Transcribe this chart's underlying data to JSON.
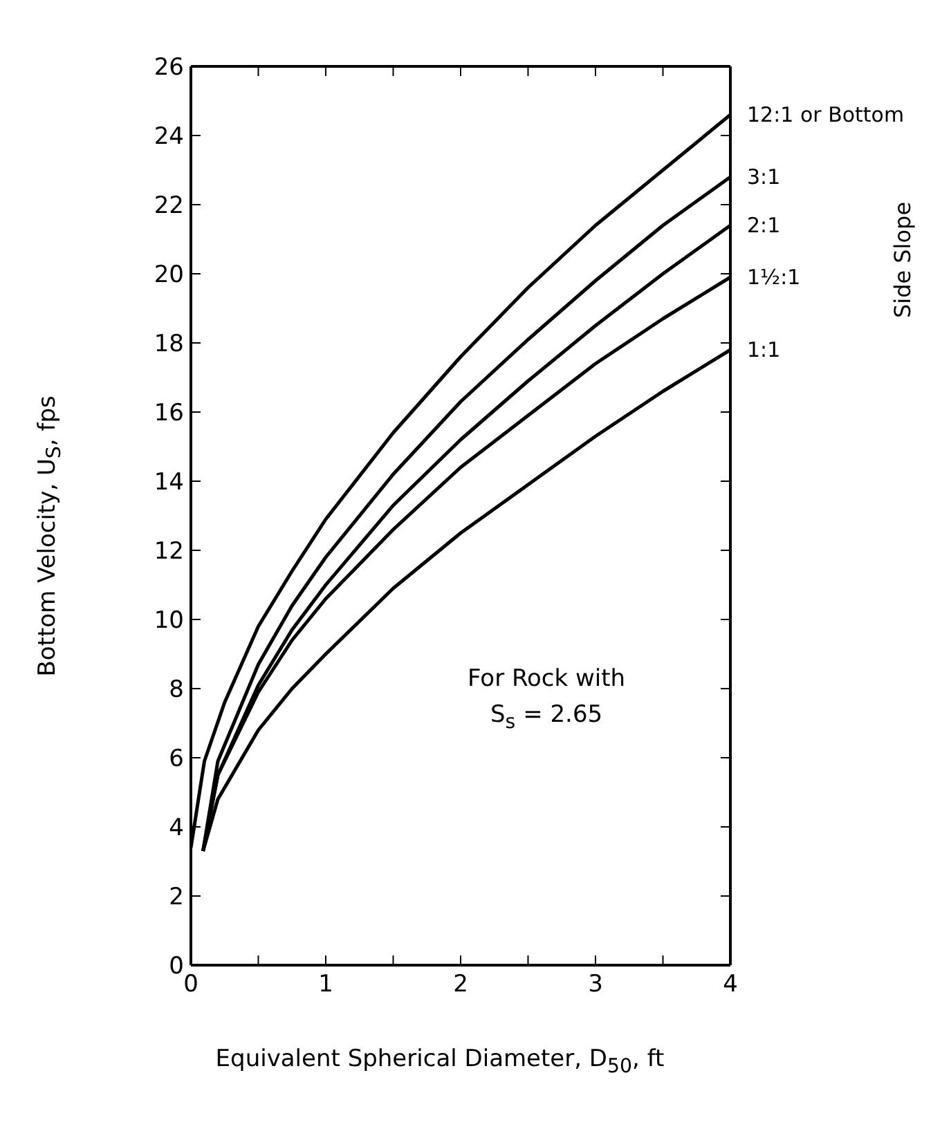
{
  "chart_data": {
    "type": "line",
    "xlabel": "Equivalent Spherical Diameter, D$_{50}$, ft",
    "ylabel": "Bottom Velocity, U$_{S}$, fps",
    "legend_title": "Side Slope",
    "annotations": [
      "For Rock with",
      "S$_{s}$ = 2.65"
    ],
    "xlim": [
      0,
      4
    ],
    "xticks": [
      0,
      {
        "value": 0.5,
        "label": null
      },
      1,
      {
        "value": 1.5,
        "label": null
      },
      2,
      {
        "value": 2.5,
        "label": null
      },
      3,
      {
        "value": 3.5,
        "label": null
      },
      4
    ],
    "ylim": [
      0,
      26
    ],
    "yticks": [
      0,
      2,
      4,
      6,
      8,
      10,
      12,
      14,
      16,
      18,
      20,
      22,
      24,
      26
    ],
    "legend": "right",
    "marker": "none",
    "line_style": "solid",
    "series": [
      {
        "name": "12:1 or Bottom",
        "color": "#000000",
        "x": [
          0,
          0.1,
          0.25,
          0.5,
          0.75,
          1,
          1.5,
          2,
          2.5,
          3,
          3.5,
          4
        ],
        "values": [
          3.4,
          5.9,
          7.6,
          9.8,
          11.4,
          12.9,
          15.4,
          17.6,
          19.6,
          21.4,
          23.0,
          24.6
        ]
      },
      {
        "name": "3:1",
        "color": "#000000",
        "x": [
          0.09,
          0.2,
          0.5,
          0.75,
          1,
          1.5,
          2,
          2.5,
          3,
          3.5,
          4
        ],
        "values": [
          3.3,
          5.9,
          8.7,
          10.4,
          11.8,
          14.2,
          16.3,
          18.1,
          19.8,
          21.4,
          22.8
        ]
      },
      {
        "name": "2:1",
        "color": "#000000",
        "x": [
          0.09,
          0.2,
          0.5,
          0.75,
          1,
          1.5,
          2,
          2.5,
          3,
          3.5,
          4
        ],
        "values": [
          3.3,
          5.5,
          8.1,
          9.7,
          11.0,
          13.3,
          15.2,
          16.9,
          18.5,
          20.0,
          21.4
        ]
      },
      {
        "name": "1½:1",
        "color": "#000000",
        "x": [
          0.09,
          0.2,
          0.5,
          0.75,
          1,
          1.5,
          2,
          2.5,
          3,
          3.5,
          4
        ],
        "values": [
          3.3,
          5.5,
          7.9,
          9.4,
          10.6,
          12.6,
          14.4,
          15.9,
          17.4,
          18.7,
          19.9
        ]
      },
      {
        "name": "1:1",
        "color": "#000000",
        "x": [
          0.09,
          0.2,
          0.5,
          0.75,
          1,
          1.5,
          2,
          2.5,
          3,
          3.5,
          4
        ],
        "values": [
          3.3,
          4.8,
          6.8,
          8.0,
          9.0,
          10.9,
          12.5,
          13.9,
          15.3,
          16.6,
          17.8
        ]
      }
    ]
  }
}
